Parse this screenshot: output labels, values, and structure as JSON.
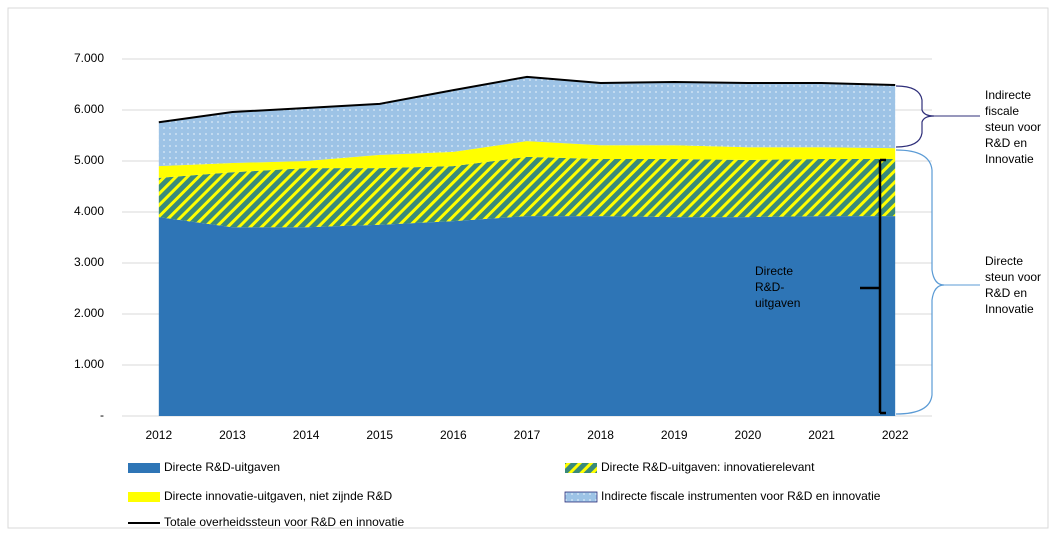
{
  "chart_data": {
    "type": "area",
    "stacked": true,
    "categories": [
      "2012",
      "2013",
      "2014",
      "2015",
      "2016",
      "2017",
      "2018",
      "2019",
      "2020",
      "2021",
      "2022"
    ],
    "ylim": [
      0,
      7000
    ],
    "yticks": [
      {
        "value": 0,
        "label": "-"
      },
      {
        "value": 1000,
        "label": "1.000"
      },
      {
        "value": 2000,
        "label": "2.000"
      },
      {
        "value": 3000,
        "label": "3.000"
      },
      {
        "value": 4000,
        "label": "4.000"
      },
      {
        "value": 5000,
        "label": "5.000"
      },
      {
        "value": 6000,
        "label": "6.000"
      },
      {
        "value": 7000,
        "label": "7.000"
      }
    ],
    "grid": true,
    "series": [
      {
        "name": "Directe R&D-uitgaven",
        "color": "#2e75b6",
        "values": [
          3900,
          3700,
          3700,
          3750,
          3820,
          3920,
          3920,
          3900,
          3900,
          3920,
          3920
        ]
      },
      {
        "name": "Directe R&D-uitgaven: innovatierelevant",
        "color": "#3a8a7a",
        "pattern": "hatch",
        "pattern_color": "#ffff00",
        "values": [
          770,
          1080,
          1160,
          1110,
          1080,
          1160,
          1120,
          1140,
          1120,
          1120,
          1120
        ]
      },
      {
        "name": "Directe innovatie-uitgaven, niet zijnde R&D",
        "color": "#ffff00",
        "values": [
          230,
          180,
          140,
          260,
          280,
          310,
          270,
          270,
          250,
          230,
          210
        ]
      },
      {
        "name": "Indirecte fiscale instrumenten voor R&D en innovatie",
        "color": "#9dc3e6",
        "pattern": "dots",
        "pattern_color": "#ddebf7",
        "values": [
          860,
          1000,
          1040,
          1000,
          1210,
          1260,
          1220,
          1240,
          1260,
          1260,
          1240
        ]
      },
      {
        "name": "Totale overheidssteun voor R&D en innovatie",
        "color": "#000000",
        "type": "line",
        "values": [
          5760,
          5960,
          6040,
          6120,
          6390,
          6650,
          6530,
          6550,
          6530,
          6530,
          6490
        ]
      }
    ],
    "annotations": [
      {
        "lines": [
          "Directe",
          "R&D-",
          "uitgaven"
        ]
      },
      {
        "lines": [
          "Indirecte",
          "fiscale",
          "steun voor",
          "R&D en",
          "Innovatie"
        ]
      },
      {
        "lines": [
          "Directe",
          "steun voor",
          "R&D en",
          "Innovatie"
        ]
      }
    ]
  }
}
